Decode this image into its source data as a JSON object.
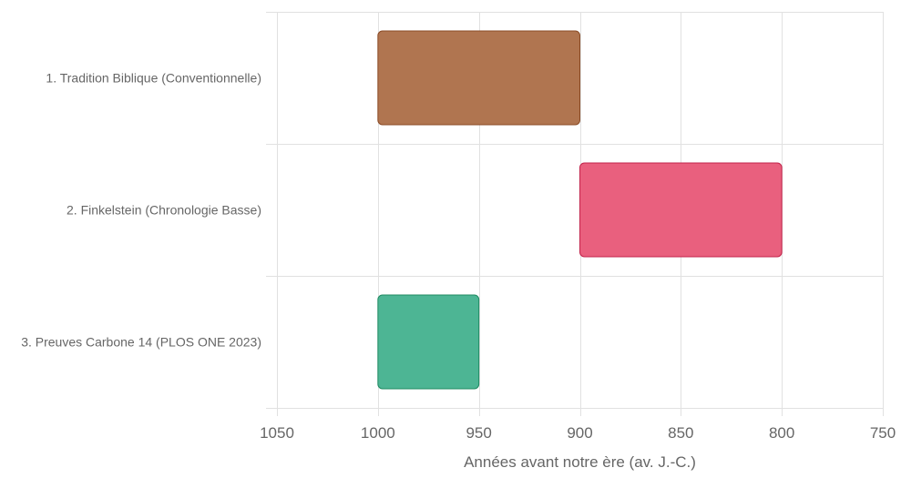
{
  "chart_data": {
    "type": "bar",
    "orientation": "horizontal",
    "floating": true,
    "categories": [
      "1. Tradition Biblique (Conventionnelle)",
      "2. Finkelstein (Chronologie Basse)",
      "3. Preuves Carbone 14 (PLOS ONE 2023)"
    ],
    "ranges": [
      {
        "start": 1000,
        "end": 900
      },
      {
        "start": 900,
        "end": 800
      },
      {
        "start": 1000,
        "end": 950
      }
    ],
    "colors": [
      "#b07550",
      "#e9607e",
      "#4db594"
    ],
    "border_colors": [
      "#8a4a24",
      "#c2224a",
      "#1f8a62"
    ],
    "xlim": [
      1050,
      750
    ],
    "x_reversed": true,
    "xticks": [
      "1050",
      "1000",
      "950",
      "900",
      "850",
      "800",
      "750"
    ],
    "xlabel": "Années avant notre ère (av. J.-C.)",
    "grid": true
  }
}
